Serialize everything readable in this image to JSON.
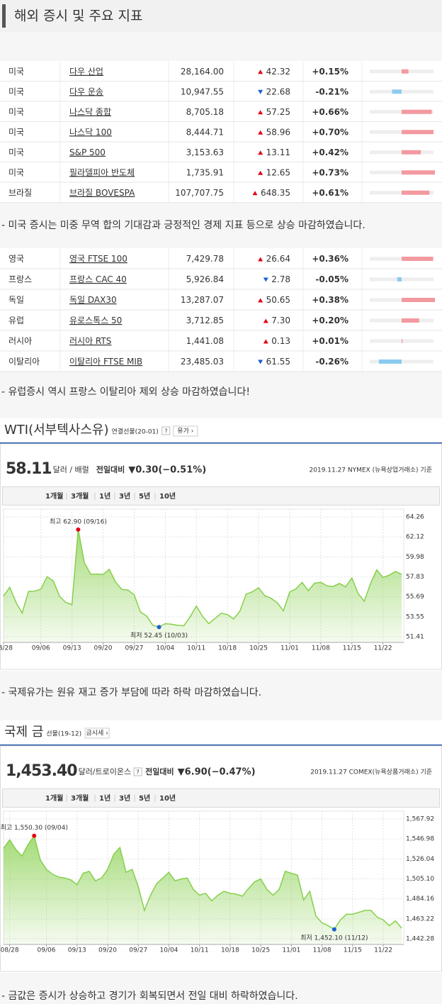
{
  "header": {
    "title": "해외 증시 및 주요 지표"
  },
  "us_table": {
    "rows": [
      {
        "country": "미국",
        "name": "다우 산업",
        "price": "28,164.00",
        "change": "42.32",
        "dir": "up",
        "pct": 0.15,
        "pct_label": "+0.15%"
      },
      {
        "country": "미국",
        "name": "다우 운송",
        "price": "10,947.55",
        "change": "22.68",
        "dir": "down",
        "pct": -0.21,
        "pct_label": "-0.21%"
      },
      {
        "country": "미국",
        "name": "나스닥 종합",
        "price": "8,705.18",
        "change": "57.25",
        "dir": "up",
        "pct": 0.66,
        "pct_label": "+0.66%"
      },
      {
        "country": "미국",
        "name": "나스닥 100",
        "price": "8,444.71",
        "change": "58.96",
        "dir": "up",
        "pct": 0.7,
        "pct_label": "+0.70%"
      },
      {
        "country": "미국",
        "name": "S&P 500",
        "price": "3,153.63",
        "change": "13.11",
        "dir": "up",
        "pct": 0.42,
        "pct_label": "+0.42%"
      },
      {
        "country": "미국",
        "name": "필라델피아 반도체",
        "price": "1,735.91",
        "change": "12.65",
        "dir": "up",
        "pct": 0.73,
        "pct_label": "+0.73%"
      },
      {
        "country": "브라질",
        "name": "브라질 BOVESPA",
        "price": "107,707.75",
        "change": "648.35",
        "dir": "up",
        "pct": 0.61,
        "pct_label": "+0.61%"
      }
    ]
  },
  "note1": "- 미국 증시는 미중 무역 합의 기대감과 긍정적인 경제 지표 등으로 상승 마감하였습니다.",
  "eu_table": {
    "rows": [
      {
        "country": "영국",
        "name": "영국 FTSE 100",
        "price": "7,429.78",
        "change": "26.64",
        "dir": "up",
        "pct": 0.36,
        "pct_label": "+0.36%"
      },
      {
        "country": "프랑스",
        "name": "프랑스 CAC 40",
        "price": "5,926.84",
        "change": "2.78",
        "dir": "down",
        "pct": -0.05,
        "pct_label": "-0.05%"
      },
      {
        "country": "독일",
        "name": "독일 DAX30",
        "price": "13,287.07",
        "change": "50.65",
        "dir": "up",
        "pct": 0.38,
        "pct_label": "+0.38%"
      },
      {
        "country": "유럽",
        "name": "유로스톡스 50",
        "price": "3,712.85",
        "change": "7.30",
        "dir": "up",
        "pct": 0.2,
        "pct_label": "+0.20%"
      },
      {
        "country": "러시아",
        "name": "러시아 RTS",
        "price": "1,441.08",
        "change": "0.13",
        "dir": "up",
        "pct": 0.01,
        "pct_label": "+0.01%"
      },
      {
        "country": "이탈리아",
        "name": "이탈리아 FTSE MIB",
        "price": "23,485.03",
        "change": "61.55",
        "dir": "down",
        "pct": -0.26,
        "pct_label": "-0.26%"
      }
    ]
  },
  "note2": "- 유럽증시 역시 프랑스 이탈리아 제외 상승 마감하였습니다!",
  "chart_data": [
    {
      "type": "area",
      "title": "WTI(서부텍사스유)",
      "subtitle": "연결선물(20-01)",
      "help_icon": "?",
      "button": "유가 ›",
      "price": "58.11",
      "unit": "달러 / 배럴",
      "compare_label": "전일대비",
      "change": "▼0.30(−0.51%)",
      "source": "2019.11.27 NYMEX (뉴욕상업거래소) 기준",
      "tabs": [
        "1개월",
        "3개월",
        "1년",
        "3년",
        "5년",
        "10년"
      ],
      "selected_tab": 1,
      "categories": [
        "08/28",
        null,
        null,
        null,
        null,
        null,
        "09/06",
        null,
        null,
        null,
        null,
        "09/13",
        null,
        null,
        null,
        null,
        "09/20",
        null,
        null,
        null,
        null,
        "09/27",
        null,
        null,
        null,
        null,
        "10/04",
        null,
        null,
        null,
        null,
        "10/11",
        null,
        null,
        null,
        null,
        "10/18",
        null,
        null,
        null,
        null,
        "10/25",
        null,
        null,
        null,
        null,
        "11/01",
        null,
        null,
        null,
        null,
        "11/08",
        null,
        null,
        null,
        null,
        "11/15",
        null,
        null,
        null,
        null,
        "11/22",
        null,
        null,
        null
      ],
      "values": [
        55.78,
        56.71,
        55.1,
        53.94,
        56.26,
        56.3,
        56.52,
        57.85,
        57.4,
        55.75,
        55.09,
        54.85,
        62.9,
        59.34,
        58.11,
        58.13,
        58.09,
        58.64,
        57.29,
        56.49,
        56.41,
        55.91,
        54.07,
        53.62,
        52.64,
        52.45,
        52.81,
        52.75,
        52.63,
        52.59,
        53.55,
        54.7,
        53.59,
        52.81,
        53.36,
        53.93,
        53.78,
        53.31,
        54.16,
        55.97,
        56.23,
        56.66,
        55.81,
        55.54,
        55.06,
        54.18,
        56.2,
        56.54,
        57.23,
        56.35,
        57.15,
        57.24,
        56.86,
        56.8,
        57.12,
        56.77,
        57.72,
        56.05,
        55.21,
        57.11,
        58.58,
        57.77,
        58.01,
        58.41,
        58.11
      ],
      "color": "#86cf4a",
      "ylim": [
        51.41,
        64.26
      ],
      "yticks": [
        64.26,
        62.12,
        59.98,
        57.83,
        55.69,
        53.55,
        51.41
      ],
      "grid": true,
      "high_label": "최고 62.90 (09/16)",
      "low_label": "최저 52.45 (10/03)"
    },
    {
      "type": "area",
      "title": "국제 금",
      "subtitle": "선물(19-12)",
      "help_icon": "?",
      "button": "금시세 ›",
      "price": "1,453.40",
      "unit": "달러/트로이온스",
      "compare_label": "전일대비",
      "change": "▼6.90(−0.47%)",
      "source": "2019.11.27 COMEX(뉴욕상품거래소) 기준",
      "tabs": [
        "1개월",
        "3개월",
        "1년",
        "3년",
        "5년",
        "10년"
      ],
      "selected_tab": 1,
      "categories": [
        null,
        "08/28",
        null,
        null,
        null,
        null,
        null,
        "09/06",
        null,
        null,
        null,
        null,
        "09/13",
        null,
        null,
        null,
        null,
        "09/20",
        null,
        null,
        null,
        null,
        "09/27",
        null,
        null,
        null,
        null,
        "10/04",
        null,
        null,
        null,
        null,
        "10/11",
        null,
        null,
        null,
        null,
        "10/18",
        null,
        null,
        null,
        null,
        "10/25",
        null,
        null,
        null,
        null,
        "11/01",
        null,
        null,
        null,
        null,
        "11/08",
        null,
        null,
        null,
        null,
        "11/15",
        null,
        null,
        null,
        null,
        "11/22",
        null,
        null,
        null
      ],
      "values": [
        1537,
        1546,
        1536,
        1529,
        1541,
        1550.3,
        1525,
        1515,
        1510,
        1507,
        1506,
        1504,
        1499,
        1511,
        1513,
        1503,
        1506,
        1515,
        1531,
        1538,
        1512,
        1515,
        1497,
        1472,
        1488,
        1500,
        1506,
        1512,
        1503,
        1505,
        1506,
        1494,
        1488,
        1490,
        1482,
        1488,
        1492,
        1490,
        1489,
        1487,
        1495,
        1502,
        1505,
        1494,
        1488,
        1494,
        1513,
        1511,
        1509,
        1483,
        1492,
        1466,
        1459,
        1456,
        1452.1,
        1462,
        1468,
        1468,
        1470,
        1472,
        1472,
        1465,
        1462,
        1456,
        1461,
        1453.4
      ],
      "color": "#86cf4a",
      "ylim": [
        1442.28,
        1567.92
      ],
      "yticks": [
        {
          "value": 1567.92,
          "label": "1,567.92"
        },
        {
          "value": 1546.98,
          "label": "1,546.98"
        },
        {
          "value": 1526.04,
          "label": "1,526.04"
        },
        {
          "value": 1505.1,
          "label": "1,505.10"
        },
        {
          "value": 1484.16,
          "label": "1,484.16"
        },
        {
          "value": 1463.22,
          "label": "1,463.22"
        },
        {
          "value": 1442.28,
          "label": "1,442.28"
        }
      ],
      "grid": true,
      "high_label": "최고 1,550.30 (09/04)",
      "low_label": "최저 1,452.10 (11/12)"
    }
  ],
  "note3": "- 국제유가는 원유 재고 증가 부담에 따라 하락 마감하였습니다.",
  "note4": "- 금값은 증시가 상승하고 경기가 회복되면서 전일 대비 하락하였습니다."
}
